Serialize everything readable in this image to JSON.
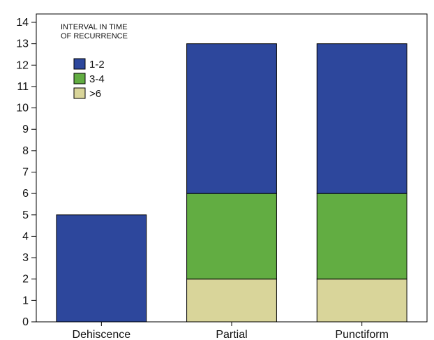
{
  "chart_data": {
    "type": "bar",
    "stacked": true,
    "categories": [
      "Dehiscence",
      "Partial",
      "Punctiform"
    ],
    "series": [
      {
        "name": ">6",
        "color": "#d9d59a",
        "values": [
          0,
          2,
          2
        ]
      },
      {
        "name": "3-4",
        "color": "#62ad42",
        "values": [
          0,
          4,
          4
        ]
      },
      {
        "name": "1-2",
        "color": "#2d479c",
        "values": [
          5,
          7,
          7
        ]
      }
    ],
    "ylim": [
      0,
      14
    ],
    "yticks": [
      "0",
      "1",
      "2",
      "3",
      "4",
      "5",
      "6",
      "7",
      "8",
      "9",
      "10",
      "11",
      "12",
      "13",
      "14"
    ],
    "legend_title_lines": [
      "INTERVAL IN TIME",
      "OF RECURRENCE"
    ],
    "legend_order": [
      "1-2",
      "3-4",
      ">6"
    ],
    "legend_placement": "top-left",
    "grid": false
  }
}
